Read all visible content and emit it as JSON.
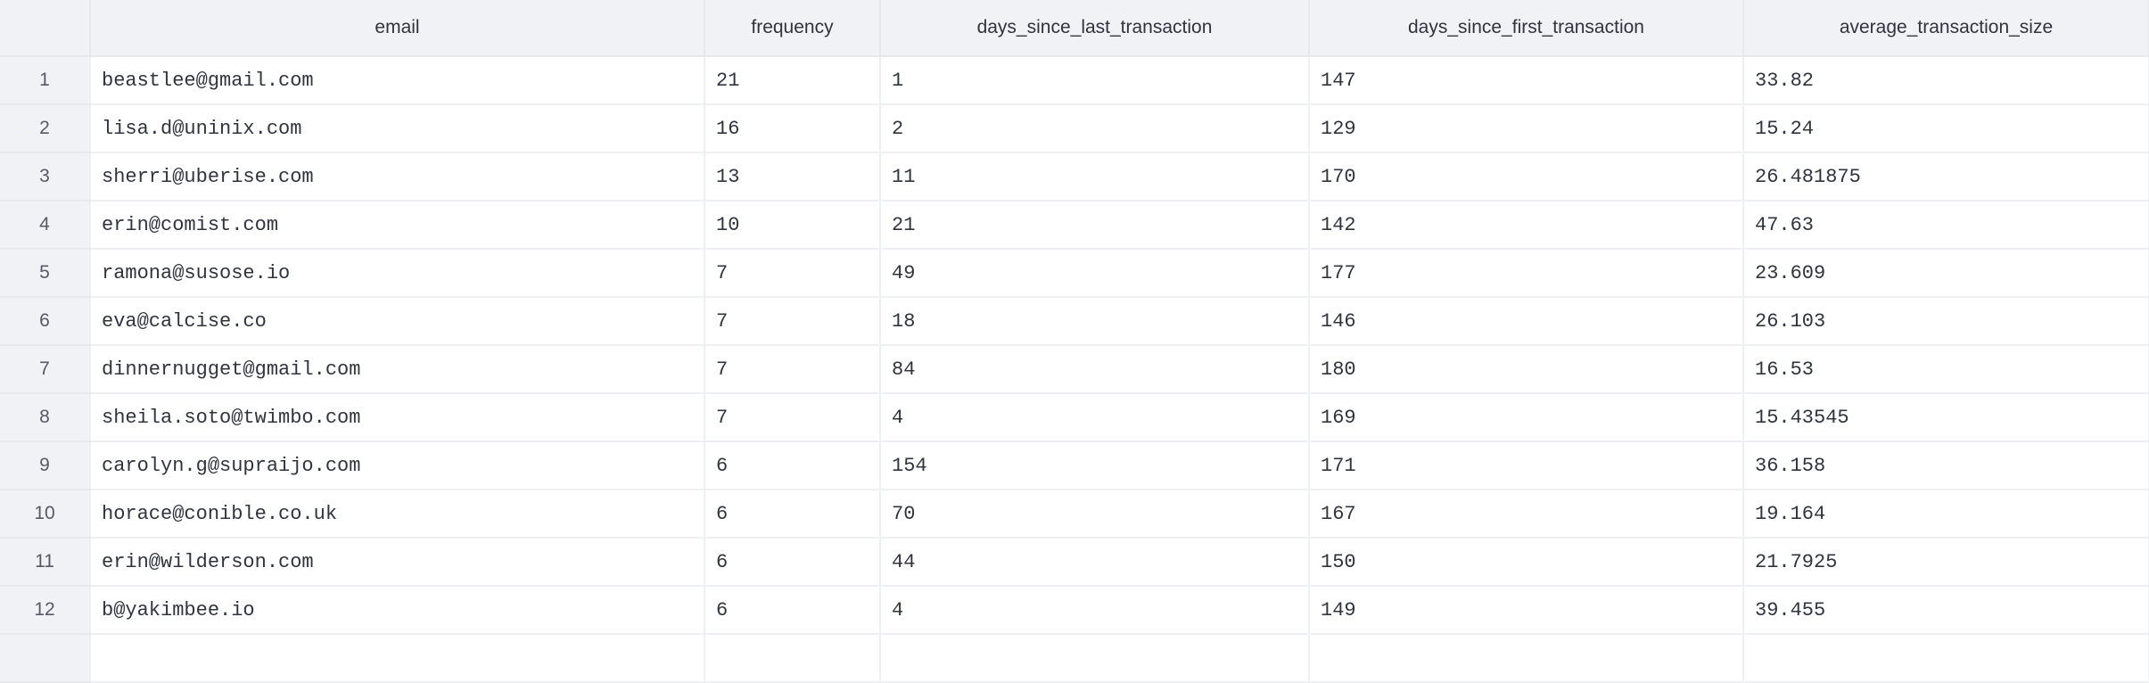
{
  "columns": [
    "",
    "email",
    "frequency",
    "days_since_last_transaction",
    "days_since_first_transaction",
    "average_transaction_size"
  ],
  "rows": [
    [
      "1",
      "beastlee@gmail.com",
      "21",
      "1",
      "147",
      "33.82"
    ],
    [
      "2",
      "lisa.d@uninix.com",
      "16",
      "2",
      "129",
      "15.24"
    ],
    [
      "3",
      "sherri@uberise.com",
      "13",
      "11",
      "170",
      "26.481875"
    ],
    [
      "4",
      "erin@comist.com",
      "10",
      "21",
      "142",
      "47.63"
    ],
    [
      "5",
      "ramona@susose.io",
      "7",
      "49",
      "177",
      "23.609"
    ],
    [
      "6",
      "eva@calcise.co",
      "7",
      "18",
      "146",
      "26.103"
    ],
    [
      "7",
      "dinnernugget@gmail.com",
      "7",
      "84",
      "180",
      "16.53"
    ],
    [
      "8",
      "sheila.soto@twimbo.com",
      "7",
      "4",
      "169",
      "15.43545"
    ],
    [
      "9",
      "carolyn.g@supraijo.com",
      "6",
      "154",
      "171",
      "36.158"
    ],
    [
      "10",
      "horace@conible.co.uk",
      "6",
      "70",
      "167",
      "19.164"
    ],
    [
      "11",
      "erin@wilderson.com",
      "6",
      "44",
      "150",
      "21.7925"
    ],
    [
      "12",
      "b@yakimbee.io",
      "6",
      "4",
      "149",
      "39.455"
    ]
  ]
}
